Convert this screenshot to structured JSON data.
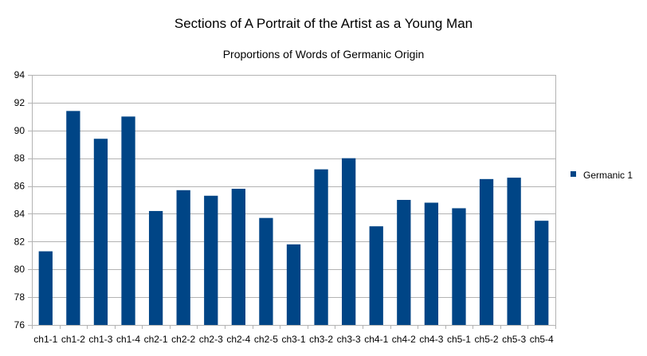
{
  "chart_data": {
    "type": "bar",
    "title": "Sections of A Portrait of the Artist as a Young Man",
    "subtitle": "Proportions of Words of Germanic Origin",
    "xlabel": "",
    "ylabel": "",
    "ylim": [
      76,
      94
    ],
    "yticks": [
      76,
      78,
      80,
      82,
      84,
      86,
      88,
      90,
      92,
      94
    ],
    "grid": true,
    "legend_position": "right",
    "categories": [
      "ch1-1",
      "ch1-2",
      "ch1-3",
      "ch1-4",
      "ch2-1",
      "ch2-2",
      "ch2-3",
      "ch2-4",
      "ch2-5",
      "ch3-1",
      "ch3-2",
      "ch3-3",
      "ch4-1",
      "ch4-2",
      "ch4-3",
      "ch5-1",
      "ch5-2",
      "ch5-3",
      "ch5-4"
    ],
    "series": [
      {
        "name": "Germanic 1",
        "color": "#004586",
        "values": [
          81.3,
          91.4,
          89.4,
          91.0,
          84.2,
          85.7,
          85.3,
          85.8,
          83.7,
          81.8,
          87.2,
          88.0,
          83.1,
          85.0,
          84.8,
          84.4,
          86.5,
          86.6,
          83.5
        ]
      }
    ]
  }
}
